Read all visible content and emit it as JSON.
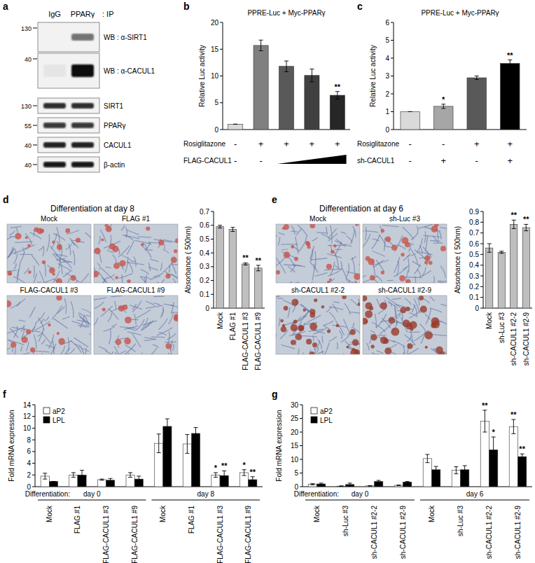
{
  "blot": {
    "panel": "a",
    "lanes": [
      "IgG",
      "PPARγ"
    ],
    "lane_suffix": ": IP",
    "rows": [
      {
        "label": "WB : α-SIRT1",
        "marker": 130,
        "intensity": [
          0,
          0.55
        ]
      },
      {
        "label": "WB : α-CACUL1",
        "marker": 40,
        "intensity": [
          0.05,
          1
        ]
      },
      {
        "label": "SIRT1",
        "marker": 130,
        "intensity": [
          0.85,
          0.85
        ]
      },
      {
        "label": "PPARγ",
        "marker": 55,
        "intensity": [
          0.8,
          0.8
        ]
      },
      {
        "label": "CACUL1",
        "marker": 40,
        "intensity": [
          0.9,
          0.9
        ]
      },
      {
        "label": "β-actin",
        "marker": 40,
        "intensity": [
          0.95,
          0.95
        ]
      }
    ]
  },
  "micrographs": [
    {
      "panel": "d",
      "title": "Differentiation at day 8",
      "labels": [
        "Mock",
        "FLAG #1",
        "FLAG-CACUL1 #3",
        "FLAG-CACUL1 #9"
      ]
    },
    {
      "panel": "e",
      "title": "Differentiation at day 6",
      "labels": [
        "Mock",
        "sh-Luc #3",
        "sh-CACUL1 #2-2",
        "sh-CACUL1 #2-9"
      ]
    }
  ],
  "chart_data": [
    {
      "type": "bar",
      "panel": "b",
      "title": "PPRE-Luc + Myc-PPARγ",
      "y_label": "Relative Luc activity",
      "categories": [
        null,
        null,
        null,
        null,
        null
      ],
      "series": [
        {
          "values": [
            1,
            15.7,
            11.8,
            10.1,
            6.4
          ],
          "errors": [
            0,
            1.0,
            1.0,
            1.2,
            0.7
          ],
          "annotations": [
            null,
            null,
            null,
            null,
            "**"
          ],
          "colors": [
            "#d9d9d9",
            "#808080",
            "#595959",
            "#404040",
            "#262626"
          ]
        }
      ],
      "ylim": [
        0,
        20
      ],
      "yticks": [
        0,
        5,
        10,
        15,
        20
      ],
      "conditions": [
        {
          "label": "Rosiglitazone",
          "values": [
            "-",
            "+",
            "+",
            "+",
            "+"
          ]
        },
        {
          "label": "FLAG-CACUL1",
          "values": [
            "-",
            "-",
            null,
            null,
            null
          ]
        }
      ]
    },
    {
      "type": "bar",
      "panel": "c",
      "title": "PPRE-Luc + Myc-PPARγ",
      "y_label": "Relative Luc activity",
      "categories": [
        null,
        null,
        null,
        null
      ],
      "series": [
        {
          "values": [
            1,
            1.3,
            2.9,
            3.7
          ],
          "errors": [
            0,
            0.12,
            0.1,
            0.2
          ],
          "annotations": [
            null,
            "*",
            null,
            "**"
          ],
          "colors": [
            "#d9d9d9",
            "#a6a6a6",
            "#595959",
            "#000000"
          ]
        }
      ],
      "ylim": [
        0,
        6
      ],
      "yticks": [
        0,
        1,
        2,
        3,
        4,
        5,
        6
      ],
      "conditions": [
        {
          "label": "Rosiglitazone",
          "values": [
            "-",
            "-",
            "+",
            "+"
          ]
        },
        {
          "label": "sh-CACUL1",
          "values": [
            "-",
            "+",
            "-",
            "+"
          ]
        }
      ]
    },
    {
      "type": "bar",
      "y_label": "Absorbance ( 500nm)",
      "categories": [
        "Mock",
        "FLAG #1",
        "FLAG-CACUL1 #3",
        "FLAG-CACUL1 #9"
      ],
      "series": [
        {
          "values": [
            0.59,
            0.57,
            0.32,
            0.29
          ],
          "errors": [
            0.01,
            0.015,
            0.008,
            0.02
          ],
          "annotations": [
            null,
            null,
            "**",
            "**"
          ],
          "color": "#bfbfbf"
        }
      ],
      "ylim": [
        0,
        0.7
      ],
      "yticks": [
        0,
        0.1,
        0.2,
        0.3,
        0.4,
        0.5,
        0.6,
        0.7
      ]
    },
    {
      "type": "bar",
      "y_label": "Absorbance ( 500nm)",
      "categories": [
        "Mock",
        "sh-Luc #3",
        "sh-CACUL1 #2-2",
        "sh-CACUL1 #2-9"
      ],
      "series": [
        {
          "values": [
            0.56,
            0.52,
            0.78,
            0.75
          ],
          "errors": [
            0.04,
            0.01,
            0.04,
            0.03
          ],
          "annotations": [
            null,
            null,
            "**",
            "**"
          ],
          "color": "#bfbfbf"
        }
      ],
      "ylim": [
        0,
        0.9
      ],
      "yticks": [
        0,
        0.1,
        0.2,
        0.3,
        0.4,
        0.5,
        0.6,
        0.7,
        0.8,
        0.9
      ]
    },
    {
      "type": "bar",
      "panel": "f",
      "y_label": "Fold mRNA expression",
      "categories": [
        "Mock",
        "FLAG #1",
        "FLAG-CACUL1 #3",
        "FLAG-CACUL1 #9",
        "Mock",
        "FLAG #1",
        "FLAG-CACUL1 #3",
        "FLAG-CACUL1 #9"
      ],
      "group_title": "Differentiation:",
      "groups": [
        "day 0",
        "day 8"
      ],
      "series": [
        {
          "name": "aP2",
          "color": "#ffffff",
          "values": [
            1.8,
            2.0,
            1.2,
            2.0,
            7.4,
            7.3,
            2.0,
            2.4
          ],
          "errors": [
            0.5,
            0.4,
            0.1,
            0.4,
            1.6,
            1.6,
            0.4,
            0.5
          ],
          "annotations": [
            null,
            null,
            null,
            null,
            null,
            null,
            "*",
            "*"
          ]
        },
        {
          "name": "LPL",
          "color": "#000000",
          "values": [
            0.9,
            2.0,
            1.1,
            1.3,
            10.3,
            9.1,
            1.9,
            1.2
          ],
          "errors": [
            0,
            0.8,
            0.3,
            0.5,
            1.3,
            1.0,
            0.8,
            0.5
          ],
          "annotations": [
            null,
            null,
            null,
            null,
            null,
            null,
            "**",
            "**"
          ]
        }
      ],
      "ylim": [
        0,
        14
      ],
      "yticks": [
        0,
        2,
        4,
        6,
        8,
        10,
        12,
        14
      ],
      "legend": "upper left"
    },
    {
      "type": "bar",
      "panel": "g",
      "y_label": "Fold mRNA expression",
      "categories": [
        "Mock",
        "sh-Luc #3",
        "sh-CACUL1 #2-2",
        "sh-CACUL1 #2-9",
        "Mock",
        "sh-Luc #3",
        "sh-CACUL1 #2-2",
        "sh-CACUL1 #2-9"
      ],
      "group_title": "Differentiation:",
      "groups": [
        "day 0",
        "day 6"
      ],
      "series": [
        {
          "name": "aP2",
          "color": "#ffffff",
          "values": [
            0.9,
            0.2,
            0.3,
            0.5,
            10.3,
            6.0,
            24.0,
            22.0
          ],
          "errors": [
            0.2,
            0.1,
            0.1,
            0.1,
            1.5,
            1.3,
            4.0,
            2.6
          ],
          "annotations": [
            null,
            null,
            null,
            null,
            null,
            null,
            "**",
            "**"
          ]
        },
        {
          "name": "LPL",
          "color": "#000000",
          "values": [
            1.0,
            0.8,
            1.9,
            1.7,
            6.2,
            6.2,
            13.5,
            11.0
          ],
          "errors": [
            0.3,
            0.5,
            0.4,
            0.2,
            1.2,
            1.5,
            4.7,
            1.0
          ],
          "annotations": [
            null,
            null,
            null,
            null,
            null,
            null,
            "*",
            "**"
          ]
        }
      ],
      "ylim": [
        0,
        30
      ],
      "yticks": [
        0,
        5,
        10,
        15,
        20,
        25,
        30
      ],
      "legend": "upper left"
    }
  ]
}
